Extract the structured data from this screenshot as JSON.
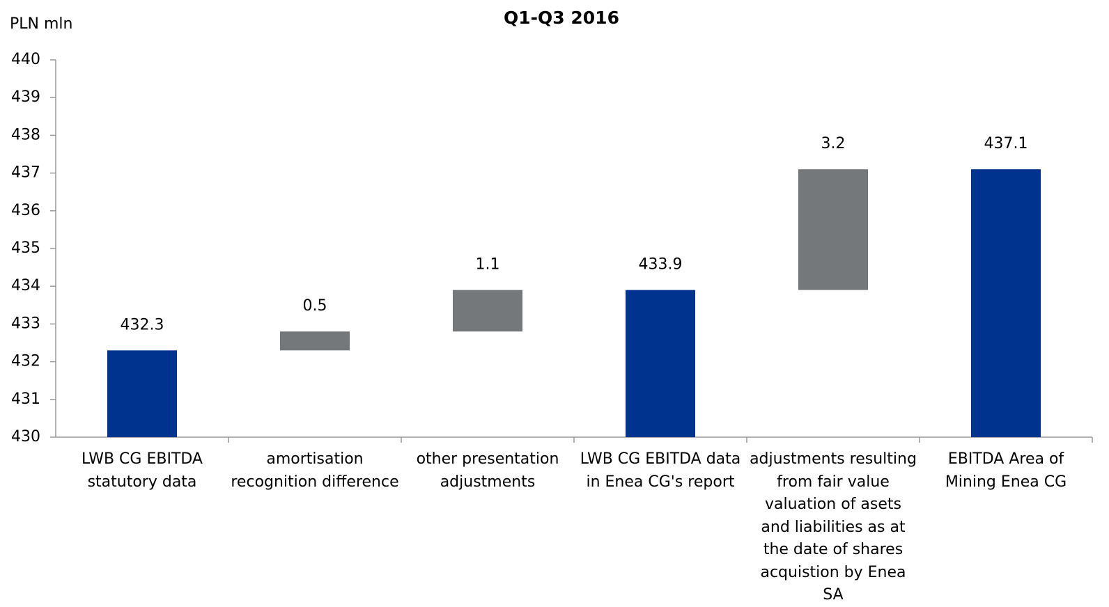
{
  "chart_data": {
    "type": "waterfall",
    "title": "Q1-Q3 2016",
    "y_label": "PLN mln",
    "categories": [
      "LWB CG EBITDA statutory data",
      "amortisation recognition difference",
      "other presentation adjustments",
      "LWB CG EBITDA data in Enea CG's report",
      "adjustments resulting from fair value valuation of asets and liabilities as at the date of shares acquistion by Enea SA",
      "EBITDA Area of Mining Enea CG"
    ],
    "values": [
      432.3,
      0.5,
      1.1,
      433.9,
      3.2,
      437.1
    ],
    "totals": [
      true,
      false,
      false,
      true,
      false,
      true
    ],
    "total_color": "#00338d",
    "delta_color": "#75787b",
    "ylim": [
      430,
      440
    ],
    "yticks": [
      430,
      431,
      432,
      433,
      434,
      435,
      436,
      437,
      438,
      439,
      440
    ],
    "grid": false
  }
}
